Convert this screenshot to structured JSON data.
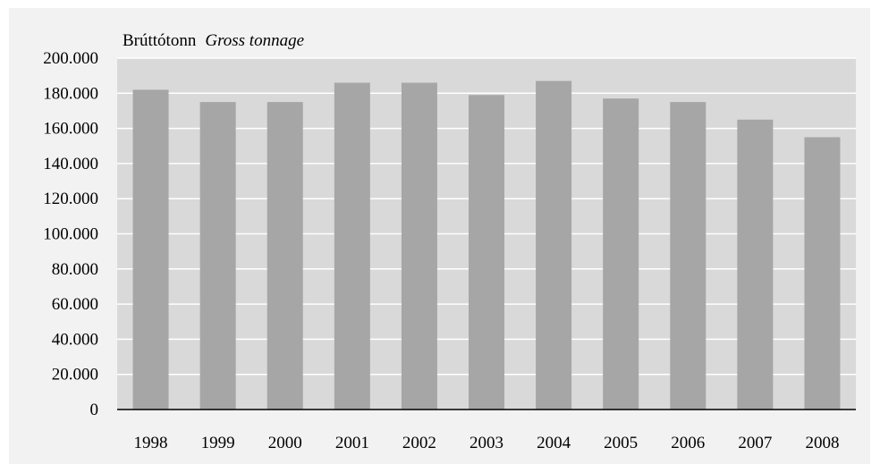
{
  "chart_data": {
    "type": "bar",
    "title": "",
    "unit_label": "Brúttótonn",
    "unit_label_en": "Gross tonnage",
    "xlabel": "",
    "ylabel": "",
    "categories": [
      "1998",
      "1999",
      "2000",
      "2001",
      "2002",
      "2003",
      "2004",
      "2005",
      "2006",
      "2007",
      "2008"
    ],
    "values": [
      182000,
      175000,
      175000,
      186000,
      186000,
      179000,
      187000,
      177000,
      175000,
      165000,
      155000
    ],
    "ylim": [
      0,
      200000
    ],
    "yticks": [
      0,
      20000,
      40000,
      60000,
      80000,
      100000,
      120000,
      140000,
      160000,
      180000,
      200000
    ],
    "ytick_labels": [
      "0",
      "20.000",
      "40.000",
      "60.000",
      "80.000",
      "100.000",
      "120.000",
      "140.000",
      "160.000",
      "180.000",
      "200.000"
    ],
    "grid": true,
    "legend": "none",
    "colors": {
      "background": "#f2f2f2",
      "plot_area": "#d9d9d9",
      "bar": "#a6a6a6",
      "grid": "#ffffff",
      "axis": "#000000"
    }
  }
}
